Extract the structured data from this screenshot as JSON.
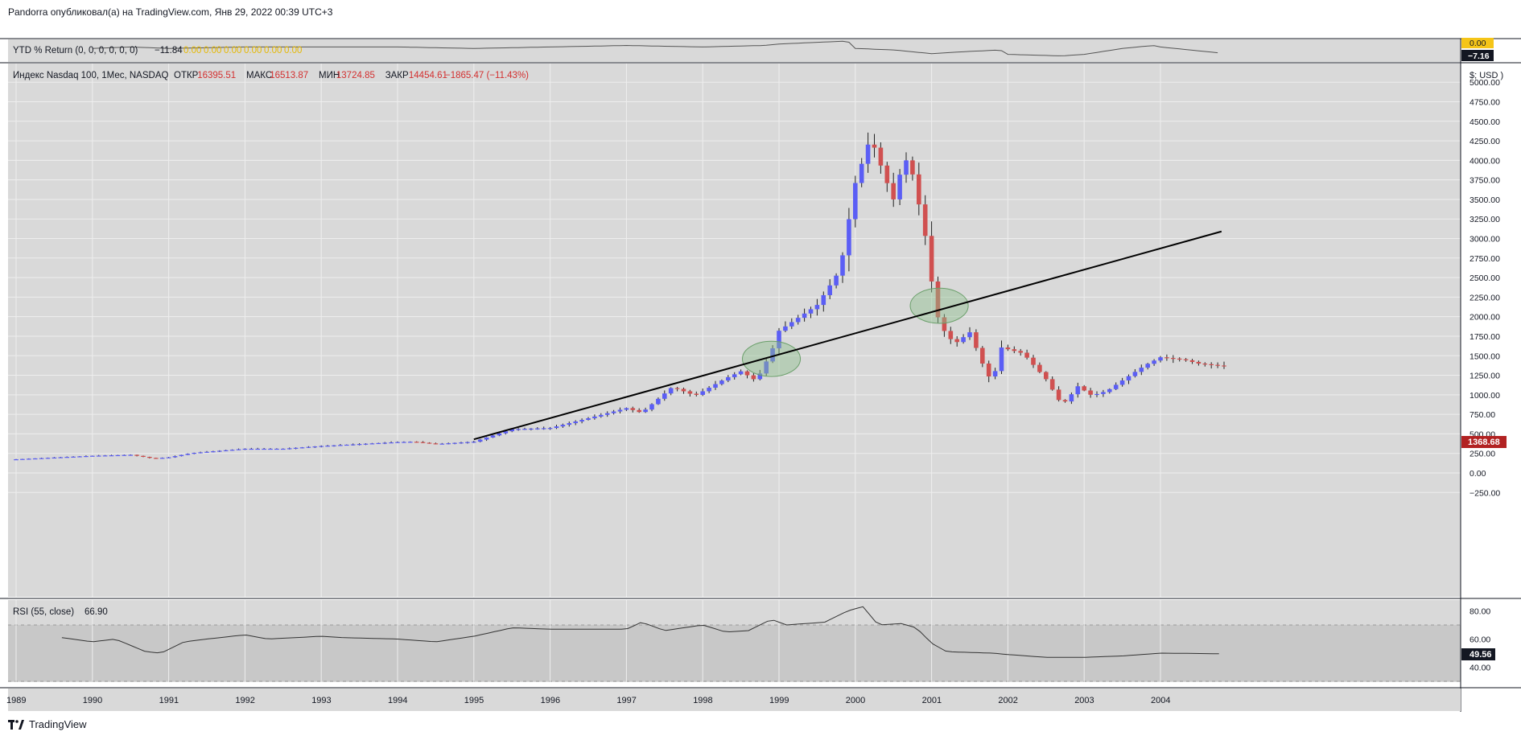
{
  "header": {
    "publisher_line": "Pandorra опубликовал(а) на TradingView.com, Янв 29, 2022 00:39 UTC+3"
  },
  "footer": {
    "brand": "TradingView"
  },
  "colors": {
    "up": "#5b5ef5",
    "down": "#d05050",
    "panel_bg": "#d9d9d9",
    "grid": "#eeeeee",
    "price_badge": "#b22222",
    "trendline": "#000000",
    "ellipse": "#8fbf8f"
  },
  "ytd_panel": {
    "legend_name": "YTD % Return (0, 0, 0, 0, 0, 0)",
    "legend_value": "−11.84",
    "legend_zeros": [
      "0.00",
      "0.00",
      "0.00",
      "0.00",
      "0.00",
      "0.00"
    ],
    "axis_value_zero": "0.00",
    "axis_value_current": "−7.16"
  },
  "main_panel": {
    "symbol_line": "Индекс Nasdaq 100, 1Мес, NASDAQ",
    "ohlc": [
      {
        "label": "ОТКР",
        "value": "16395.51"
      },
      {
        "label": "МАКС",
        "value": "16513.87"
      },
      {
        "label": "МИН",
        "value": "13724.85"
      },
      {
        "label": "ЗАКР",
        "value": "14454.61"
      }
    ],
    "change": "−1865.47 (−11.43%)",
    "currency_label": "$; USD )",
    "current_price": "1368.68",
    "price_ticks": [
      "5000.00",
      "4750.00",
      "4500.00",
      "4250.00",
      "4000.00",
      "3750.00",
      "3500.00",
      "3250.00",
      "3000.00",
      "2750.00",
      "2500.00",
      "2250.00",
      "2000.00",
      "1750.00",
      "1500.00",
      "1250.00",
      "1000.00",
      "750.00",
      "500.00",
      "250.00",
      "0.00",
      "−250.00"
    ]
  },
  "rsi_panel": {
    "legend_name": "RSI (55, close)",
    "legend_value": "66.90",
    "ticks": [
      "80.00",
      "60.00",
      "40.00"
    ],
    "current_value": "49.56"
  },
  "time_axis": {
    "labels": [
      "1989",
      "1990",
      "1991",
      "1992",
      "1993",
      "1994",
      "1995",
      "1996",
      "1997",
      "1998",
      "1999",
      "2000",
      "2001",
      "2002",
      "2003",
      "2004"
    ]
  },
  "chart_data": {
    "type": "candlestick",
    "title": "Индекс Nasdaq 100, 1Мес, NASDAQ",
    "x_start": 1989.0,
    "x_end": 2004.8,
    "ylim": [
      -300,
      5250
    ],
    "period": "monthly",
    "anchors": [
      [
        1989.0,
        175
      ],
      [
        1990.0,
        220
      ],
      [
        1990.5,
        232
      ],
      [
        1990.8,
        185
      ],
      [
        1991.0,
        200
      ],
      [
        1991.3,
        255
      ],
      [
        1992.0,
        310
      ],
      [
        1992.5,
        310
      ],
      [
        1993.0,
        345
      ],
      [
        1994.0,
        395
      ],
      [
        1994.2,
        400
      ],
      [
        1994.5,
        370
      ],
      [
        1995.0,
        400
      ],
      [
        1995.5,
        560
      ],
      [
        1996.0,
        575
      ],
      [
        1996.5,
        700
      ],
      [
        1997.0,
        830
      ],
      [
        1997.2,
        770
      ],
      [
        1997.6,
        1100
      ],
      [
        1997.9,
        990
      ],
      [
        1998.3,
        1210
      ],
      [
        1998.5,
        1300
      ],
      [
        1998.7,
        1180
      ],
      [
        1998.9,
        1550
      ],
      [
        1999.0,
        1820
      ],
      [
        1999.5,
        2150
      ],
      [
        1999.8,
        2600
      ],
      [
        2000.0,
        3710
      ],
      [
        2000.2,
        4300
      ],
      [
        2000.4,
        3750
      ],
      [
        2000.5,
        3500
      ],
      [
        2000.6,
        3880
      ],
      [
        2000.7,
        4060
      ],
      [
        2000.8,
        3580
      ],
      [
        2000.9,
        3150
      ],
      [
        2001.0,
        2450
      ],
      [
        2001.1,
        1900
      ],
      [
        2001.3,
        1650
      ],
      [
        2001.5,
        1800
      ],
      [
        2001.7,
        1320
      ],
      [
        2001.8,
        1150
      ],
      [
        2001.9,
        1610
      ],
      [
        2002.2,
        1530
      ],
      [
        2002.5,
        1200
      ],
      [
        2002.7,
        880
      ],
      [
        2002.8,
        950
      ],
      [
        2002.9,
        1120
      ],
      [
        2003.1,
        990
      ],
      [
        2003.3,
        1050
      ],
      [
        2003.6,
        1250
      ],
      [
        2003.8,
        1380
      ],
      [
        2004.0,
        1480
      ],
      [
        2004.3,
        1450
      ],
      [
        2004.5,
        1400
      ],
      [
        2004.8,
        1370
      ]
    ],
    "annotations": {
      "trendline": {
        "x1": 1995.0,
        "y1": 430,
        "x2": 2004.8,
        "y2": 3090
      },
      "ellipses": [
        {
          "cx": 1998.9,
          "cy": 1460,
          "rx": 0.38,
          "ry": 225
        },
        {
          "cx": 2001.1,
          "cy": 2140,
          "rx": 0.38,
          "ry": 225
        }
      ]
    },
    "ytd_series": {
      "ylim": [
        -12,
        1
      ],
      "anchors": [
        [
          1990.0,
          -4
        ],
        [
          1990.5,
          -3
        ],
        [
          1991.0,
          -4
        ],
        [
          1992.0,
          -3
        ],
        [
          1993.0,
          -3
        ],
        [
          1994.0,
          -3
        ],
        [
          1995.0,
          -4
        ],
        [
          1996.0,
          -3
        ],
        [
          1997.0,
          -2
        ],
        [
          1998.0,
          -3
        ],
        [
          1998.8,
          -2
        ],
        [
          1999.0,
          -1
        ],
        [
          1999.9,
          1
        ],
        [
          2000.0,
          -4
        ],
        [
          2000.5,
          -5
        ],
        [
          2000.9,
          -7
        ],
        [
          2001.0,
          -7.5
        ],
        [
          2001.5,
          -6
        ],
        [
          2001.9,
          -5
        ],
        [
          2002.0,
          -8
        ],
        [
          2002.7,
          -9
        ],
        [
          2003.0,
          -8
        ],
        [
          2003.5,
          -4
        ],
        [
          2003.9,
          -2
        ],
        [
          2004.0,
          -3
        ],
        [
          2004.8,
          -7.16
        ]
      ]
    },
    "rsi_series": {
      "ylim": [
        30,
        85
      ],
      "bands": [
        70,
        30
      ],
      "anchors": [
        [
          1989.6,
          61
        ],
        [
          1990.0,
          58
        ],
        [
          1990.3,
          60
        ],
        [
          1990.7,
          51
        ],
        [
          1990.9,
          50
        ],
        [
          1991.2,
          58
        ],
        [
          1991.5,
          60
        ],
        [
          1992.0,
          63
        ],
        [
          1992.3,
          60
        ],
        [
          1993.0,
          62
        ],
        [
          1993.3,
          61
        ],
        [
          1994.0,
          60
        ],
        [
          1994.5,
          58
        ],
        [
          1995.0,
          62
        ],
        [
          1995.5,
          68
        ],
        [
          1996.0,
          67
        ],
        [
          1996.5,
          67
        ],
        [
          1997.0,
          67
        ],
        [
          1997.2,
          72
        ],
        [
          1997.5,
          66
        ],
        [
          1998.0,
          70
        ],
        [
          1998.3,
          65
        ],
        [
          1998.6,
          66
        ],
        [
          1998.9,
          74
        ],
        [
          1999.1,
          70
        ],
        [
          1999.6,
          72
        ],
        [
          1999.9,
          80
        ],
        [
          2000.1,
          83
        ],
        [
          2000.3,
          70
        ],
        [
          2000.6,
          71
        ],
        [
          2000.8,
          68
        ],
        [
          2001.0,
          57
        ],
        [
          2001.2,
          51
        ],
        [
          2001.8,
          50
        ],
        [
          2002.0,
          49
        ],
        [
          2002.5,
          47
        ],
        [
          2003.0,
          47
        ],
        [
          2003.5,
          48
        ],
        [
          2004.0,
          50
        ],
        [
          2004.8,
          49.56
        ]
      ]
    }
  }
}
